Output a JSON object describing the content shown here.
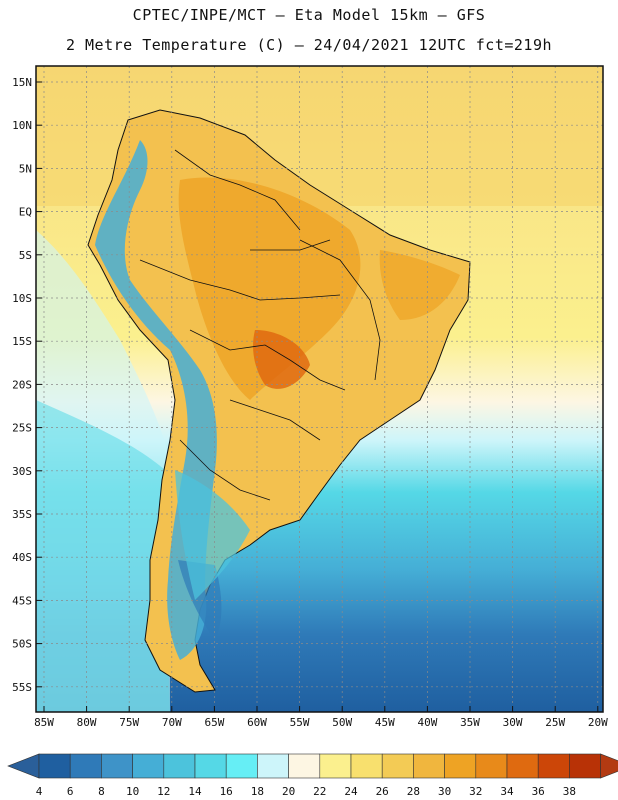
{
  "title": {
    "line1": "CPTEC/INPE/MCT –  Eta Model 15km – GFS",
    "line2": "2 Metre Temperature (C) – 24/04/2021 12UTC fct=219h"
  },
  "lat_labels": [
    "15N",
    "10N",
    "5N",
    "EQ",
    "5S",
    "10S",
    "15S",
    "20S",
    "25S",
    "30S",
    "35S",
    "40S",
    "45S",
    "50S",
    "55S"
  ],
  "lon_labels": [
    "85W",
    "80W",
    "75W",
    "70W",
    "65W",
    "60W",
    "55W",
    "50W",
    "45W",
    "40W",
    "35W",
    "30W",
    "25W",
    "20W"
  ],
  "colorbar": {
    "values": [
      "4",
      "6",
      "8",
      "10",
      "12",
      "14",
      "16",
      "18",
      "20",
      "22",
      "24",
      "26",
      "28",
      "30",
      "32",
      "34",
      "36",
      "38"
    ],
    "colors": [
      "#1f5fa0",
      "#2f7ab8",
      "#3e93c8",
      "#45aed6",
      "#4cc3dc",
      "#55d8e6",
      "#66eef5",
      "#cdf5fa",
      "#fdf6e3",
      "#fbf08e",
      "#f8e06e",
      "#f3cb55",
      "#f0b63e",
      "#eea324",
      "#e88a1a",
      "#df6a10",
      "#cc4608",
      "#b83206"
    ]
  }
}
